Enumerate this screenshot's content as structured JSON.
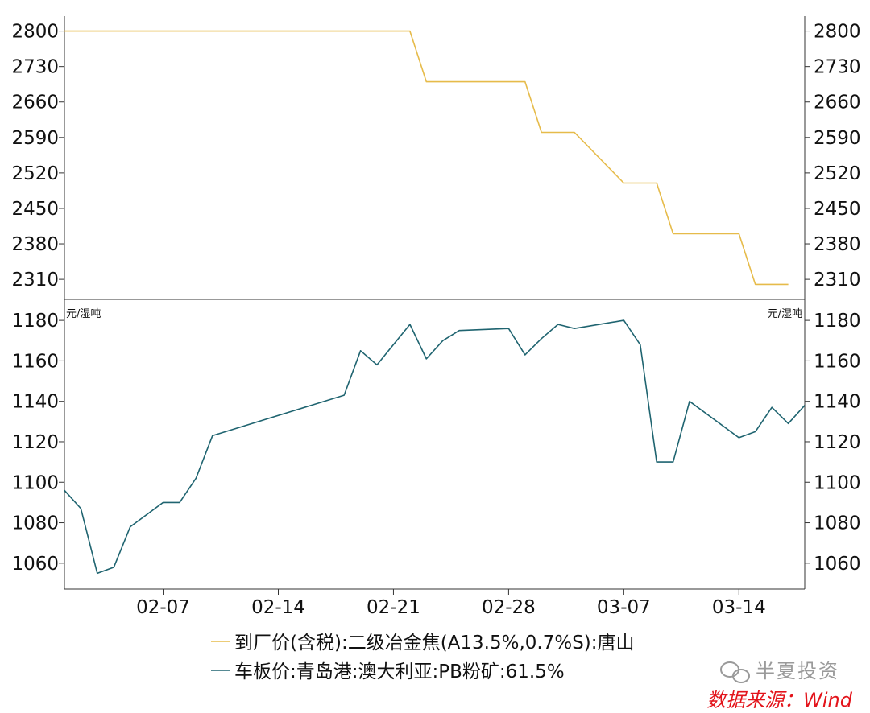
{
  "colors": {
    "coke": "#e6bb4a",
    "ore": "#1f6470",
    "axis": "#333333",
    "source": "#e3141b",
    "watermark": "#9a9a9a"
  },
  "chart_data": [
    {
      "type": "line",
      "panel": "top",
      "ylim": [
        2280,
        2820
      ],
      "y_ticks": [
        "2800",
        "2730",
        "2660",
        "2590",
        "2520",
        "2450",
        "2380",
        "2310"
      ],
      "series": [
        {
          "name": "到厂价(含税):二级冶金焦(A13.5%,0.7%S):唐山",
          "points": [
            [
              "02-01",
              2800
            ],
            [
              "02-22",
              2800
            ],
            [
              "02-23",
              2700
            ],
            [
              "03-01",
              2700
            ],
            [
              "03-02",
              2600
            ],
            [
              "03-04",
              2600
            ],
            [
              "03-07",
              2500
            ],
            [
              "03-09",
              2500
            ],
            [
              "03-10",
              2400
            ],
            [
              "03-14",
              2400
            ],
            [
              "03-15",
              2300
            ],
            [
              "03-17",
              2300
            ]
          ]
        }
      ]
    },
    {
      "type": "line",
      "panel": "bottom",
      "unit_label": "元/湿吨",
      "ylim": [
        1048,
        1188
      ],
      "y_ticks": [
        "1180",
        "1160",
        "1140",
        "1120",
        "1100",
        "1080",
        "1060"
      ],
      "series": [
        {
          "name": "车板价:青岛港:澳大利亚:PB粉矿:61.5%",
          "points": [
            [
              "02-01",
              1096
            ],
            [
              "02-02",
              1087
            ],
            [
              "02-03",
              1055
            ],
            [
              "02-04",
              1058
            ],
            [
              "02-05",
              1078
            ],
            [
              "02-07",
              1090
            ],
            [
              "02-08",
              1090
            ],
            [
              "02-09",
              1102
            ],
            [
              "02-10",
              1123
            ],
            [
              "02-18",
              1143
            ],
            [
              "02-19",
              1165
            ],
            [
              "02-20",
              1158
            ],
            [
              "02-21",
              1168
            ],
            [
              "02-22",
              1178
            ],
            [
              "02-23",
              1161
            ],
            [
              "02-24",
              1170
            ],
            [
              "02-25",
              1175
            ],
            [
              "02-28",
              1176
            ],
            [
              "03-01",
              1163
            ],
            [
              "03-02",
              1171
            ],
            [
              "03-03",
              1178
            ],
            [
              "03-04",
              1176
            ],
            [
              "03-07",
              1180
            ],
            [
              "03-08",
              1168
            ],
            [
              "03-09",
              1110
            ],
            [
              "03-10",
              1110
            ],
            [
              "03-11",
              1140
            ],
            [
              "03-14",
              1122
            ],
            [
              "03-15",
              1125
            ],
            [
              "03-16",
              1137
            ],
            [
              "03-17",
              1129
            ],
            [
              "03-18",
              1138
            ]
          ]
        }
      ]
    }
  ],
  "x_axis": {
    "tick_labels": [
      "02-07",
      "02-14",
      "02-21",
      "02-28",
      "03-07",
      "03-14"
    ],
    "start": "02-01",
    "end": "03-18"
  },
  "legend": [
    {
      "label": "到厂价(含税):二级冶金焦(A13.5%,0.7%S):唐山",
      "color": "#e6bb4a"
    },
    {
      "label": "车板价:青岛港:澳大利亚:PB粉矿:61.5%",
      "color": "#1f6470"
    }
  ],
  "watermark": "半夏投资",
  "source": "数据来源：Wind"
}
